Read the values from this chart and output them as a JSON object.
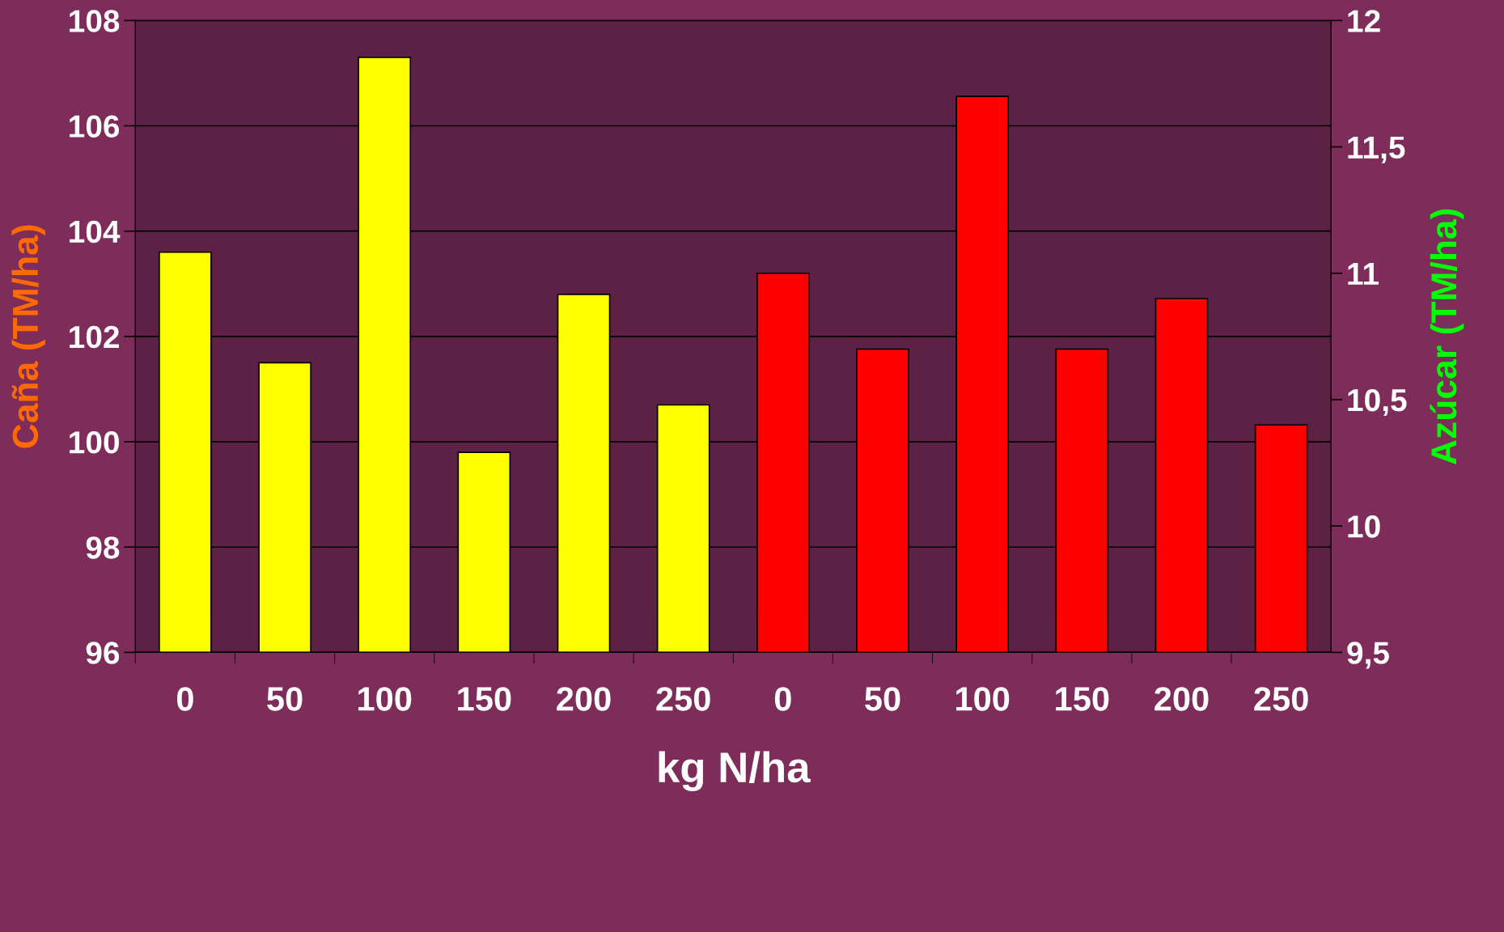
{
  "chart_data": {
    "type": "bar",
    "xlabel": "kg N/ha",
    "ylabel": "Caña (TM/ha)",
    "y2label": "Azúcar (TM/ha)",
    "categories": [
      "0",
      "50",
      "100",
      "150",
      "200",
      "250",
      "0",
      "50",
      "100",
      "150",
      "200",
      "250"
    ],
    "series": [
      {
        "color": "#ffff00",
        "values": [
          103.6,
          101.5,
          107.3,
          99.8,
          102.8,
          100.7,
          null,
          null,
          null,
          null,
          null,
          null
        ]
      },
      {
        "color": "#ff0000",
        "axis": "y2",
        "values": [
          null,
          null,
          null,
          null,
          null,
          null,
          11.0,
          10.7,
          11.7,
          10.7,
          10.9,
          10.4
        ]
      }
    ],
    "ylim": [
      96,
      108
    ],
    "yticks": [
      96,
      98,
      100,
      102,
      104,
      106,
      108
    ],
    "y2lim": [
      9.5,
      12
    ],
    "y2ticks": [
      {
        "value": 9.5,
        "label": "9,5"
      },
      10,
      {
        "value": 10.5,
        "label": "10,5"
      },
      11,
      {
        "value": 11.5,
        "label": "11,5"
      },
      12
    ],
    "grid": "y"
  }
}
